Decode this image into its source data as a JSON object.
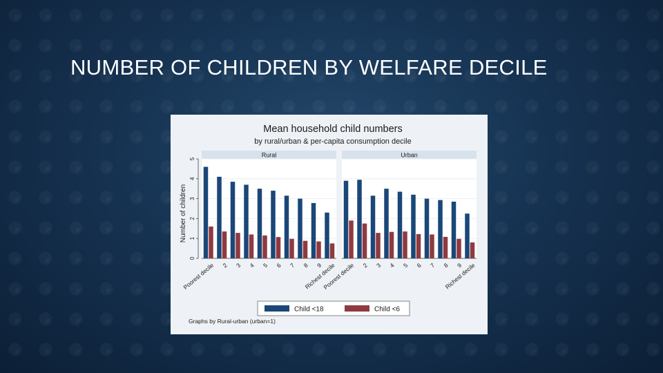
{
  "slide": {
    "title": "NUMBER OF CHILDREN BY WELFARE DECILE"
  },
  "colors": {
    "child_under_18": "#1a4778",
    "child_under_6": "#8f3a40"
  },
  "chart_data": {
    "type": "bar",
    "title": "Mean household child numbers",
    "subtitle": "by rural/urban & per-capita consumption decile",
    "ylabel": "Number of children",
    "ylim": [
      0,
      5
    ],
    "yticks": [
      "0",
      "1",
      "2",
      "3",
      "4",
      "5"
    ],
    "categories": [
      "Poorest decile",
      "2",
      "3",
      "4",
      "5",
      "6",
      "7",
      "8",
      "9",
      "Richest decile"
    ],
    "legend_position": "bottom",
    "note": "Graphs by Rural-urban (urban=1)",
    "panels": [
      {
        "name": "Rural",
        "series": [
          {
            "name": "Child <18",
            "values": [
              4.6,
              4.1,
              3.85,
              3.7,
              3.5,
              3.4,
              3.15,
              3.0,
              2.78,
              2.3
            ]
          },
          {
            "name": "Child <6",
            "values": [
              1.6,
              1.35,
              1.28,
              1.2,
              1.15,
              1.07,
              0.98,
              0.88,
              0.85,
              0.75
            ]
          }
        ]
      },
      {
        "name": "Urban",
        "series": [
          {
            "name": "Child <18",
            "values": [
              3.9,
              3.95,
              3.15,
              3.5,
              3.35,
              3.2,
              3.0,
              2.93,
              2.85,
              2.25
            ]
          },
          {
            "name": "Child <6",
            "values": [
              1.9,
              1.75,
              1.28,
              1.33,
              1.35,
              1.22,
              1.2,
              1.08,
              0.98,
              0.8
            ]
          }
        ]
      }
    ]
  }
}
